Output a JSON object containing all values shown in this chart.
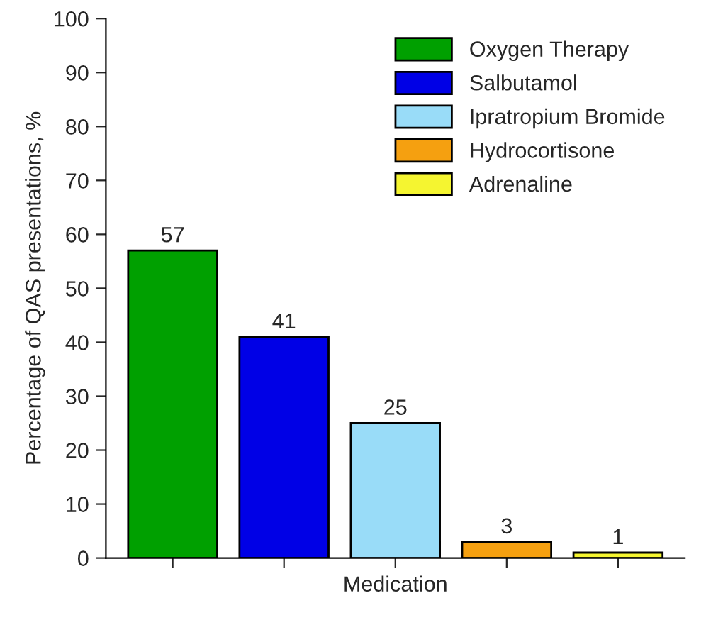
{
  "chart_data": {
    "type": "bar",
    "xlabel": "Medication",
    "ylabel": "Percentage of QAS presentations, %",
    "categories": [
      null,
      null,
      null,
      null,
      null
    ],
    "series": [
      {
        "name": "Oxygen Therapy",
        "color": "#00a000",
        "values": [
          57,
          null,
          null,
          null,
          null
        ]
      },
      {
        "name": "Salbutamol",
        "color": "#0000e6",
        "values": [
          null,
          41,
          null,
          null,
          null
        ]
      },
      {
        "name": "Ipratropium Bromide",
        "color": "#99dcf8",
        "values": [
          null,
          null,
          25,
          null,
          null
        ]
      },
      {
        "name": "Hydrocortisone",
        "color": "#f5a010",
        "values": [
          null,
          null,
          null,
          3,
          null
        ]
      },
      {
        "name": "Adrenaline",
        "color": "#f5f530",
        "values": [
          null,
          null,
          null,
          null,
          1
        ]
      }
    ],
    "ylim": [
      0,
      100
    ],
    "yticks": [
      0,
      10,
      20,
      30,
      40,
      50,
      60,
      70,
      80,
      90,
      100
    ],
    "data_labels": true,
    "legend": "top right",
    "grid": false,
    "tick_labels": "y"
  }
}
